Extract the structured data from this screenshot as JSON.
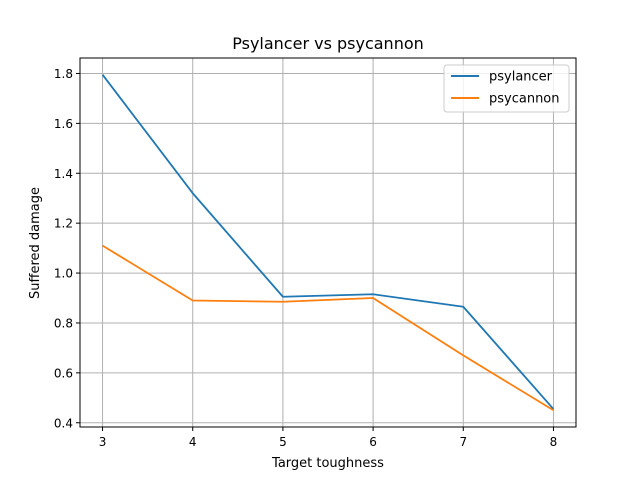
{
  "chart_data": {
    "type": "line",
    "title": "Psylancer vs psycannon",
    "xlabel": "Target toughness",
    "ylabel": "Suffered damage",
    "x": [
      3,
      4,
      5,
      6,
      7,
      8
    ],
    "series": [
      {
        "name": "psylancer",
        "color": "#1f77b4",
        "values": [
          1.795,
          1.32,
          0.905,
          0.915,
          0.865,
          0.455
        ]
      },
      {
        "name": "psycannon",
        "color": "#ff7f0e",
        "values": [
          1.11,
          0.89,
          0.885,
          0.9,
          0.67,
          0.45
        ]
      }
    ],
    "xlim": [
      2.75,
      8.25
    ],
    "ylim": [
      0.383,
      1.862
    ],
    "xticks": [
      "3",
      "4",
      "5",
      "6",
      "7",
      "8"
    ],
    "yticks": [
      "0.4",
      "0.6",
      "0.8",
      "1.0",
      "1.2",
      "1.4",
      "1.6",
      "1.8"
    ],
    "grid": true,
    "legend_position": "top-right"
  }
}
